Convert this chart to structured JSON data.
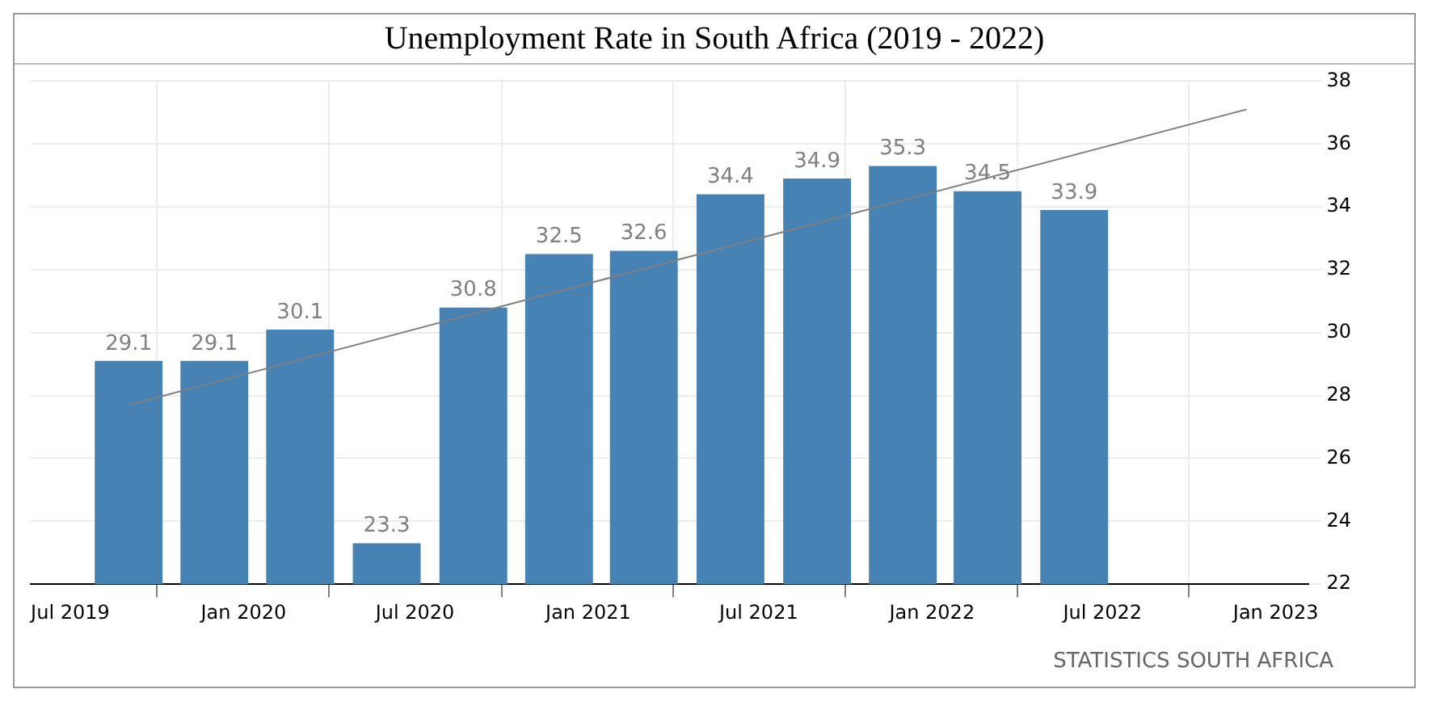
{
  "chart_data": {
    "type": "bar",
    "title": "Unemployment Rate in South Africa (2019 - 2022)",
    "x": [
      "2019-09",
      "2019-12",
      "2020-03",
      "2020-06",
      "2020-09",
      "2020-12",
      "2021-03",
      "2021-06",
      "2021-09",
      "2021-12",
      "2022-03",
      "2022-06"
    ],
    "series": [
      {
        "color": "#4682b4",
        "values": [
          29.1,
          29.1,
          30.1,
          23.3,
          30.8,
          32.5,
          32.6,
          34.4,
          34.9,
          35.3,
          34.5,
          33.9
        ],
        "value_labels": [
          "29.1",
          "29.1",
          "30.1",
          "23.3",
          "30.8",
          "32.5",
          "32.6",
          "34.4",
          "34.9",
          "35.3",
          "34.5",
          "33.9"
        ]
      },
      {
        "type": "line",
        "color": "#808080",
        "x": [
          "2019-09",
          "2022-12"
        ],
        "values": [
          27.7,
          37.1
        ]
      }
    ],
    "xlim": [
      "2019-05-20",
      "2023-02-05"
    ],
    "xticks": [
      {
        "value": "2019-07",
        "label": "Jul 2019"
      },
      {
        "value": "2020-01",
        "label": "Jan 2020"
      },
      {
        "value": "2020-07",
        "label": "Jul 2020"
      },
      {
        "value": "2021-01",
        "label": "Jan 2021"
      },
      {
        "value": "2021-07",
        "label": "Jul 2021"
      },
      {
        "value": "2022-01",
        "label": "Jan 2022"
      },
      {
        "value": "2022-07",
        "label": "Jul 2022"
      },
      {
        "value": "2023-01",
        "label": "Jan 2023"
      }
    ],
    "ylim": [
      22,
      38
    ],
    "yticks": [
      22,
      24,
      26,
      28,
      30,
      32,
      34,
      36,
      38
    ],
    "grid": true,
    "legend": false,
    "annotations": [
      "STATISTICS SOUTH AFRICA"
    ]
  }
}
